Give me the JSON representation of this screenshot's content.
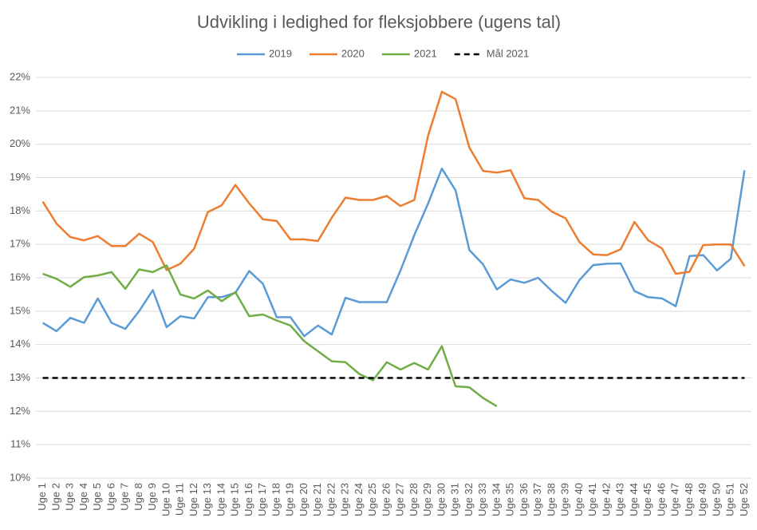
{
  "chart_data": {
    "type": "line",
    "title": "Udvikling i ledighed for fleksjobbere (ugens tal)",
    "categories": [
      "Uge 1",
      "Uge 2",
      "Uge 3",
      "Uge 4",
      "Uge 5",
      "Uge 6",
      "Uge 7",
      "Uge 8",
      "Uge 9",
      "Uge 10",
      "Uge 11",
      "Uge 12",
      "Uge 13",
      "Uge 14",
      "Uge 15",
      "Uge 16",
      "Uge 17",
      "Uge 18",
      "Uge 19",
      "Uge 20",
      "Uge 21",
      "Uge 22",
      "Uge 23",
      "Uge 24",
      "Uge 25",
      "Uge 26",
      "Uge 27",
      "Uge 28",
      "Uge 29",
      "Uge 30",
      "Uge 31",
      "Uge 32",
      "Uge 33",
      "Uge 34",
      "Uge 35",
      "Uge 36",
      "Uge 37",
      "Uge 38",
      "Uge 39",
      "Uge 40",
      "Uge 41",
      "Uge 42",
      "Uge 43",
      "Uge 44",
      "Uge 45",
      "Uge 46",
      "Uge 47",
      "Uge 48",
      "Uge 49",
      "Uge 50",
      "Uge 51",
      "Uge 52"
    ],
    "series": [
      {
        "name": "2019",
        "color": "#5b9bd5",
        "dash": false,
        "values": [
          14.65,
          14.4,
          14.8,
          14.65,
          15.38,
          14.65,
          14.47,
          15.0,
          15.63,
          14.52,
          14.85,
          14.78,
          15.42,
          15.42,
          15.55,
          16.2,
          15.82,
          14.82,
          14.82,
          14.25,
          14.57,
          14.3,
          15.4,
          15.27,
          15.27,
          15.27,
          16.22,
          17.28,
          18.22,
          19.27,
          18.62,
          16.83,
          16.4,
          15.65,
          15.95,
          15.85,
          16.0,
          15.6,
          15.25,
          15.93,
          16.38,
          16.42,
          16.43,
          15.6,
          15.42,
          15.38,
          15.15,
          16.65,
          16.68,
          16.22,
          16.57,
          19.22
        ]
      },
      {
        "name": "2020",
        "color": "#ed7d31",
        "dash": false,
        "values": [
          18.28,
          17.62,
          17.22,
          17.12,
          17.25,
          16.95,
          16.95,
          17.32,
          17.07,
          16.23,
          16.42,
          16.87,
          17.97,
          18.17,
          18.78,
          18.23,
          17.75,
          17.7,
          17.15,
          17.15,
          17.1,
          17.8,
          18.4,
          18.33,
          18.33,
          18.45,
          18.15,
          18.33,
          20.25,
          21.57,
          21.35,
          19.9,
          19.2,
          19.15,
          19.22,
          18.38,
          18.33,
          17.98,
          17.78,
          17.07,
          16.7,
          16.68,
          16.85,
          17.67,
          17.12,
          16.88,
          16.12,
          16.18,
          16.98,
          17.0,
          17.0,
          16.35
        ]
      },
      {
        "name": "2021",
        "color": "#70ad47",
        "dash": false,
        "values": [
          16.12,
          15.97,
          15.73,
          16.02,
          16.07,
          16.17,
          15.67,
          16.25,
          16.17,
          16.37,
          15.5,
          15.38,
          15.62,
          15.3,
          15.57,
          14.85,
          14.9,
          14.72,
          14.57,
          14.1,
          13.8,
          13.5,
          13.47,
          13.12,
          12.93,
          13.47,
          13.25,
          13.45,
          13.25,
          13.95,
          12.75,
          12.72,
          12.4,
          12.15,
          null,
          null,
          null,
          null,
          null,
          null,
          null,
          null,
          null,
          null,
          null,
          null,
          null,
          null,
          null,
          null,
          null,
          null
        ]
      },
      {
        "name": "Mål 2021",
        "color": "#000000",
        "dash": true,
        "values": [
          13,
          13,
          13,
          13,
          13,
          13,
          13,
          13,
          13,
          13,
          13,
          13,
          13,
          13,
          13,
          13,
          13,
          13,
          13,
          13,
          13,
          13,
          13,
          13,
          13,
          13,
          13,
          13,
          13,
          13,
          13,
          13,
          13,
          13,
          13,
          13,
          13,
          13,
          13,
          13,
          13,
          13,
          13,
          13,
          13,
          13,
          13,
          13,
          13,
          13,
          13,
          13
        ]
      }
    ],
    "ylim": [
      10,
      22
    ],
    "yticks": [
      {
        "value": 10,
        "label": "10%"
      },
      {
        "value": 11,
        "label": "11%"
      },
      {
        "value": 12,
        "label": "12%"
      },
      {
        "value": 13,
        "label": "13%"
      },
      {
        "value": 14,
        "label": "14%"
      },
      {
        "value": 15,
        "label": "15%"
      },
      {
        "value": 16,
        "label": "16%"
      },
      {
        "value": 17,
        "label": "17%"
      },
      {
        "value": 18,
        "label": "18%"
      },
      {
        "value": 19,
        "label": "19%"
      },
      {
        "value": 20,
        "label": "20%"
      },
      {
        "value": 21,
        "label": "21%"
      },
      {
        "value": 22,
        "label": "22%"
      }
    ],
    "grid": true,
    "legend": "top"
  }
}
